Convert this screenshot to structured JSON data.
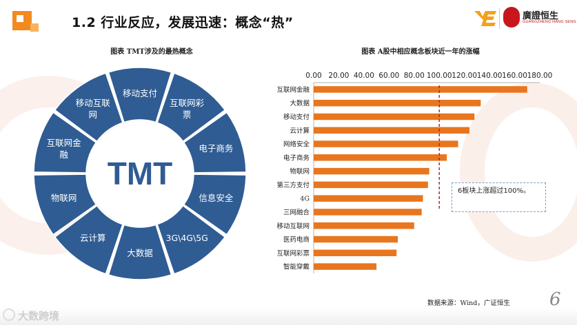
{
  "header": {
    "title": "1.2 行业反应，发展迅速：概念“热”",
    "logo_ye": "YE",
    "logo_company_cn": "廣證恒生",
    "logo_company_en": "GUANGZHENG HANG SENG",
    "logo_seal_char": "典"
  },
  "left_figure": {
    "caption": "图表  TMT涉及的最热概念",
    "center_label": "TMT",
    "segments": [
      "移动支付",
      "互联网彩票",
      "电子商务",
      "信息安全",
      "3G\\4G\\5G",
      "大数据",
      "云计算",
      "物联网",
      "互联网金融",
      "移动互联网"
    ],
    "colors": {
      "segment": "#2f5c93",
      "center_text": "#2f5c93"
    }
  },
  "right_figure": {
    "caption": "图表  A股中相应概念板块近一年的涨幅",
    "note": "6板块上涨超过100%。",
    "source": "数据来源：Wind，广证恒生"
  },
  "chart_data": {
    "type": "bar",
    "orientation": "horizontal",
    "categories": [
      "互联网金融",
      "大数据",
      "移动支付",
      "云计算",
      "网络安全",
      "电子商务",
      "物联网",
      "第三方支付",
      "4G",
      "三网融合",
      "移动互联网",
      "医药电商",
      "互联网彩票",
      "智能穿戴"
    ],
    "values": [
      170,
      133,
      128,
      124,
      115,
      106,
      92,
      91,
      87,
      86,
      80,
      67,
      66,
      50
    ],
    "xlim": [
      0,
      180
    ],
    "ticks": [
      "0.00",
      "20.00",
      "40.00",
      "60.00",
      "80.00",
      "100.00",
      "120.00",
      "140.00",
      "160.00",
      "180.00"
    ],
    "reference_line": 100,
    "bar_color": "#e8761e",
    "reference_color": "#b5252a",
    "axis_position": "top"
  },
  "footer": {
    "page_number": "6",
    "brand": "大数跨境"
  }
}
